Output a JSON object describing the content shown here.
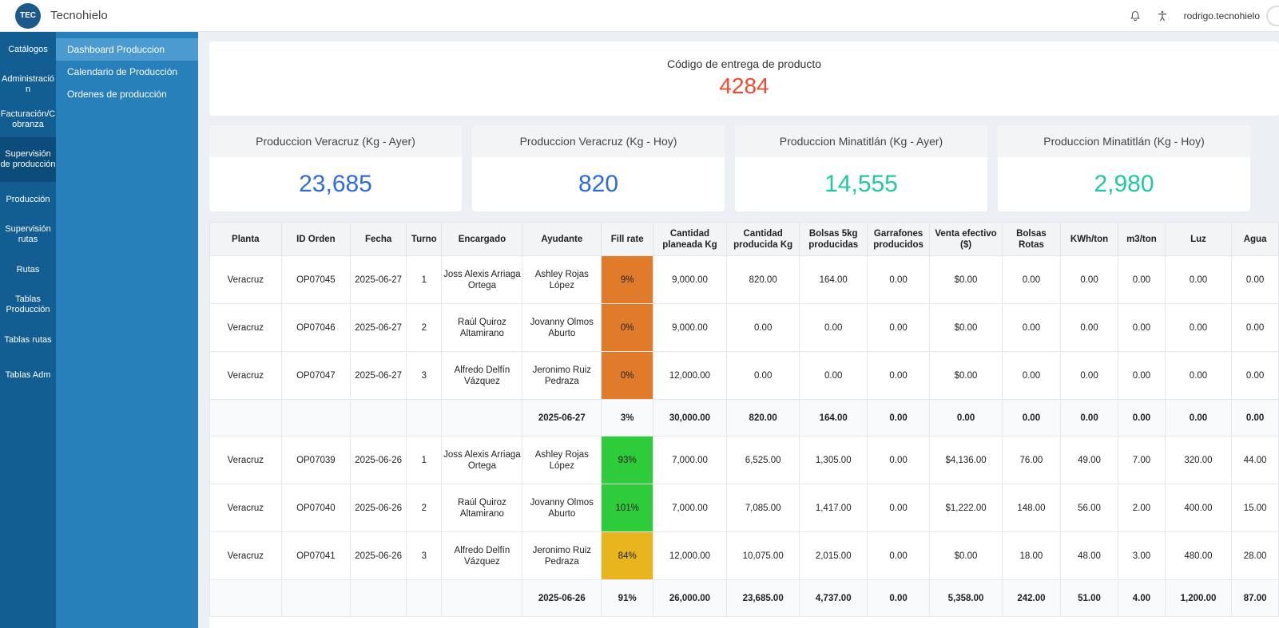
{
  "app": {
    "logo_text": "TEC",
    "name": "Tecnohielo",
    "username": "rodrigo.tecnohielo"
  },
  "icons": {
    "notification": "bell-icon",
    "accessibility": "accessibility-icon"
  },
  "sidebar": {
    "items": [
      {
        "label": "Catálogos"
      },
      {
        "label": "Administració n"
      },
      {
        "label": "Facturación/C obranza"
      },
      {
        "label": "Supervisión de producción",
        "active": true
      },
      {
        "label": "Producción"
      },
      {
        "label": "Supervisión rutas"
      },
      {
        "label": "Rutas"
      },
      {
        "label": "Tablas Producción"
      },
      {
        "label": "Tablas rutas"
      },
      {
        "label": "Tablas Adm"
      }
    ]
  },
  "subnav": {
    "items": [
      {
        "label": "Dashboard Produccion",
        "active": true
      },
      {
        "label": "Calendario de Producción"
      },
      {
        "label": "Ordenes de producción"
      }
    ]
  },
  "delivery_code": {
    "label": "Código de entrega de producto",
    "value": "4284"
  },
  "stats": [
    {
      "label": "Produccion Veracruz (Kg - Ayer)",
      "value": "23,685",
      "color": "#2f6be0"
    },
    {
      "label": "Produccion Veracruz (Kg - Hoy)",
      "value": "820",
      "color": "#2f6be0"
    },
    {
      "label": "Produccion Minatitlán (Kg - Ayer)",
      "value": "14,555",
      "color": "#20c9a2"
    },
    {
      "label": "Produccion Minatitlán (Kg - Hoy)",
      "value": "2,980",
      "color": "#20c9a2"
    }
  ],
  "fill_colors": {
    "orange": "#e07b2c",
    "green": "#2ecb3a",
    "yellow": "#e9b51f"
  },
  "table": {
    "headers": [
      "Planta",
      "ID Orden",
      "Fecha",
      "Turno",
      "Encargado",
      "Ayudante",
      "Fill rate",
      "Cantidad planeada Kg",
      "Cantidad producida Kg",
      "Bolsas 5kg producidas",
      "Garrafones producidos",
      "Venta efectivo ($)",
      "Bolsas Rotas",
      "KWh/ton",
      "m3/ton",
      "Luz",
      "Agua"
    ],
    "rows": [
      {
        "type": "row",
        "fill": "orange",
        "cells": [
          "Veracruz",
          "OP07045",
          "2025-06-27",
          "1",
          "Joss Alexis Arriaga Ortega",
          "Ashley Rojas López",
          "9%",
          "9,000.00",
          "820.00",
          "164.00",
          "0.00",
          "$0.00",
          "0.00",
          "0.00",
          "0.00",
          "0.00",
          "0.00"
        ]
      },
      {
        "type": "row",
        "fill": "orange",
        "cells": [
          "Veracruz",
          "OP07046",
          "2025-06-27",
          "2",
          "Raúl Quiroz Altamirano",
          "Jovanny Olmos Aburto",
          "0%",
          "9,000.00",
          "0.00",
          "0.00",
          "0.00",
          "$0.00",
          "0.00",
          "0.00",
          "0.00",
          "0.00",
          "0.00"
        ]
      },
      {
        "type": "row",
        "fill": "orange",
        "cells": [
          "Veracruz",
          "OP07047",
          "2025-06-27",
          "3",
          "Alfredo Delfín Vázquez",
          "Jeronimo Ruiz Pedraza",
          "0%",
          "12,000.00",
          "0.00",
          "0.00",
          "0.00",
          "$0.00",
          "0.00",
          "0.00",
          "0.00",
          "0.00",
          "0.00"
        ]
      },
      {
        "type": "total",
        "fill": "orange",
        "cells": [
          "",
          "",
          "",
          "",
          "",
          "2025-06-27",
          "3%",
          "30,000.00",
          "820.00",
          "164.00",
          "0.00",
          "0.00",
          "0.00",
          "0.00",
          "0.00",
          "0.00",
          "0.00"
        ]
      },
      {
        "type": "row",
        "fill": "green",
        "cells": [
          "Veracruz",
          "OP07039",
          "2025-06-26",
          "1",
          "Joss Alexis Arriaga Ortega",
          "Ashley Rojas López",
          "93%",
          "7,000.00",
          "6,525.00",
          "1,305.00",
          "0.00",
          "$4,136.00",
          "76.00",
          "49.00",
          "7.00",
          "320.00",
          "44.00"
        ]
      },
      {
        "type": "row",
        "fill": "green",
        "cells": [
          "Veracruz",
          "OP07040",
          "2025-06-26",
          "2",
          "Raúl Quiroz Altamirano",
          "Jovanny Olmos Aburto",
          "101%",
          "7,000.00",
          "7,085.00",
          "1,417.00",
          "0.00",
          "$1,222.00",
          "148.00",
          "56.00",
          "2.00",
          "400.00",
          "15.00"
        ]
      },
      {
        "type": "row",
        "fill": "yellow",
        "cells": [
          "Veracruz",
          "OP07041",
          "2025-06-26",
          "3",
          "Alfredo Delfín Vázquez",
          "Jeronimo Ruiz Pedraza",
          "84%",
          "12,000.00",
          "10,075.00",
          "2,015.00",
          "0.00",
          "$0.00",
          "18.00",
          "48.00",
          "3.00",
          "480.00",
          "28.00"
        ]
      },
      {
        "type": "total",
        "fill": "green",
        "cells": [
          "",
          "",
          "",
          "",
          "",
          "2025-06-26",
          "91%",
          "26,000.00",
          "23,685.00",
          "4,737.00",
          "0.00",
          "5,358.00",
          "242.00",
          "51.00",
          "4.00",
          "1,200.00",
          "87.00"
        ]
      }
    ]
  }
}
